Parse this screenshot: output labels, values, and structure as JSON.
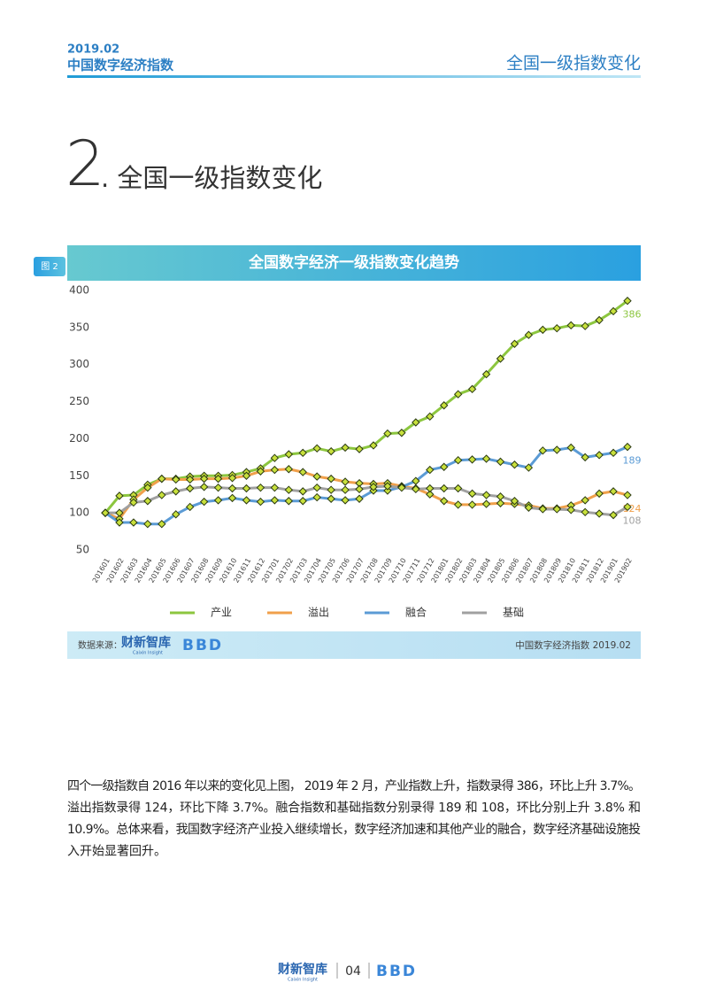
{
  "header": {
    "date": "2019.02",
    "report": "中国数字经济指数",
    "section": "全国一级指数变化"
  },
  "section_heading": {
    "number": "2",
    "title": ". 全国一级指数变化"
  },
  "figure": {
    "label": "图 2",
    "source_label": "数据来源：",
    "source_logo": "财新智库",
    "source_logo_sub": "Caixin Insight",
    "partner_logo": "BBD",
    "note": "中国数字经济指数 2019.02"
  },
  "chart_data": {
    "type": "line",
    "title": "全国数字经济一级指数变化趋势",
    "categories": [
      "201601",
      "201602",
      "201603",
      "201604",
      "201605",
      "201606",
      "201607",
      "201608",
      "201609",
      "201610",
      "201611",
      "201612",
      "201701",
      "201702",
      "201703",
      "201704",
      "201705",
      "201706",
      "201707",
      "201708",
      "201709",
      "201710",
      "201711",
      "201712",
      "201801",
      "201802",
      "201803",
      "201804",
      "201805",
      "201806",
      "201807",
      "201808",
      "201809",
      "201810",
      "201811",
      "201812",
      "201901",
      "201902"
    ],
    "series": [
      {
        "name": "产业",
        "color": "#8cc63f",
        "values": [
          100,
          123,
          124,
          138,
          146,
          146,
          149,
          150,
          150,
          151,
          155,
          160,
          174,
          179,
          181,
          187,
          183,
          188,
          186,
          191,
          207,
          208,
          222,
          230,
          245,
          260,
          267,
          287,
          308,
          328,
          340,
          347,
          349,
          353,
          352,
          360,
          372,
          386
        ]
      },
      {
        "name": "溢出",
        "color": "#f0a04b",
        "values": [
          100,
          92,
          118,
          134,
          146,
          145,
          145,
          146,
          146,
          147,
          150,
          156,
          158,
          159,
          155,
          149,
          146,
          142,
          140,
          139,
          140,
          136,
          133,
          125,
          116,
          111,
          111,
          112,
          113,
          112,
          110,
          106,
          106,
          110,
          117,
          126,
          129,
          124
        ]
      },
      {
        "name": "融合",
        "color": "#5b9bd5",
        "values": [
          100,
          87,
          87,
          85,
          85,
          98,
          108,
          115,
          117,
          120,
          117,
          115,
          117,
          116,
          116,
          121,
          119,
          117,
          119,
          130,
          130,
          135,
          143,
          158,
          162,
          171,
          172,
          173,
          169,
          165,
          161,
          184,
          185,
          188,
          175,
          178,
          181,
          189
        ]
      },
      {
        "name": "基础",
        "color": "#a0a0a0",
        "values": [
          100,
          100,
          114,
          116,
          124,
          129,
          133,
          135,
          134,
          133,
          133,
          134,
          134,
          131,
          129,
          134,
          131,
          131,
          132,
          135,
          136,
          134,
          132,
          133,
          133,
          133,
          126,
          124,
          122,
          116,
          107,
          105,
          105,
          104,
          101,
          99,
          97,
          108
        ]
      }
    ],
    "ylim": [
      50,
      400
    ],
    "yticks": [
      50,
      100,
      150,
      200,
      250,
      300,
      350,
      400
    ],
    "grid": false,
    "legend": "bottom",
    "marker_color": "#c8e03c"
  },
  "body": {
    "lines": [
      "四个一级指数自 2016 年以来的变化见上图， 2019 年 2 月，产业指数上升，指数录得 386，环比上升 3.7%。",
      "溢出指数录得 124，环比下降 3.7%。融合指数和基础指数分别录得 189 和 108，环比分别上升 3.8% 和",
      "10.9%。总体来看，我国数字经济产业投入继续增长，数字经济加速和其他产业的融合，数字经济基础设施投",
      "入开始显著回升。"
    ]
  },
  "footer": {
    "logo": "财新智库",
    "logo_sub": "Caixin Insight",
    "page": "04",
    "partner_logo": "BBD"
  }
}
